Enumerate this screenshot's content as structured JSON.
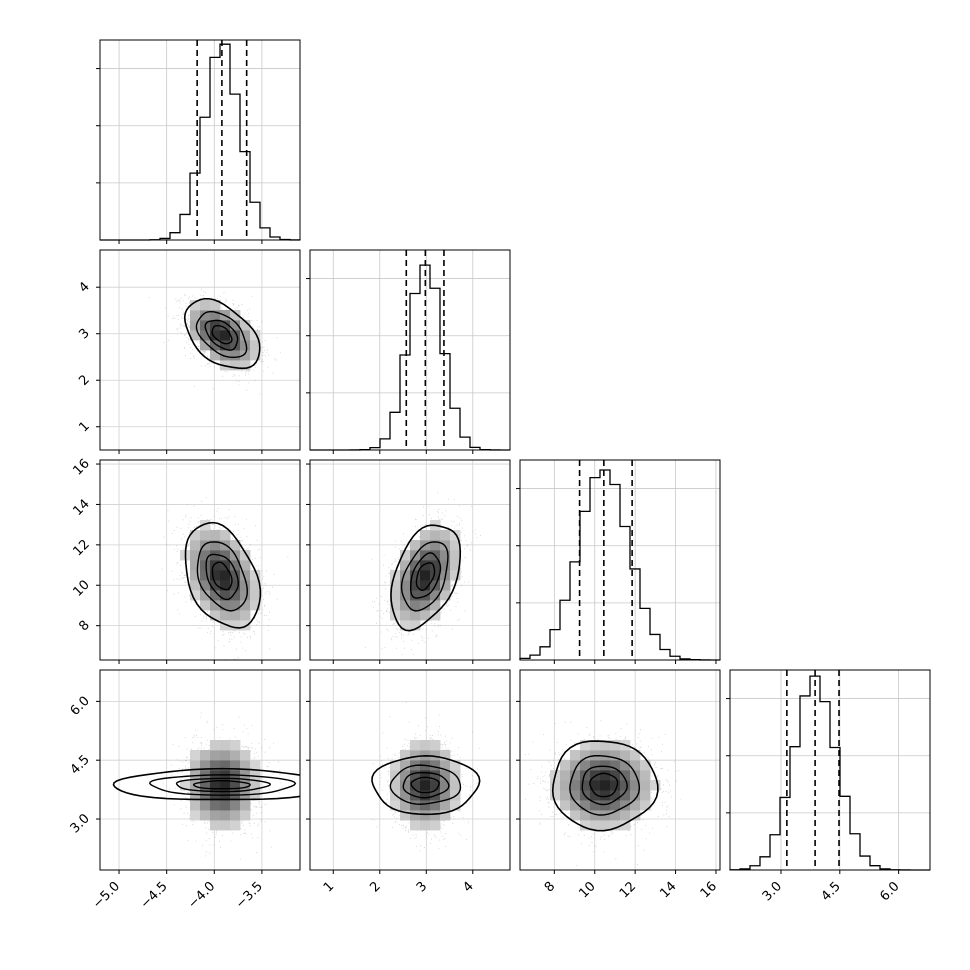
{
  "chart_data": {
    "type": "corner",
    "parameters": [
      {
        "index": 0,
        "range": [
          -5.2,
          -3.1
        ],
        "ticks": [
          -5.0,
          -4.5,
          -4.0,
          -3.5
        ],
        "tick_labels": [
          "−5.0",
          "−4.5",
          "−4.0",
          "−3.5"
        ],
        "mean": -3.92,
        "sd": 0.19,
        "quantiles": [
          -4.18,
          -3.92,
          -3.66
        ]
      },
      {
        "index": 1,
        "range": [
          0.5,
          4.8
        ],
        "ticks": [
          1,
          2,
          3,
          4
        ],
        "tick_labels": [
          "1",
          "2",
          "3",
          "4"
        ],
        "mean": 2.98,
        "sd": 0.36,
        "quantiles": [
          2.57,
          2.98,
          3.38
        ]
      },
      {
        "index": 2,
        "range": [
          6.3,
          16.2
        ],
        "ticks": [
          8,
          10,
          12,
          14,
          16
        ],
        "tick_labels": [
          "8",
          "10",
          "12",
          "14",
          "16"
        ],
        "mean": 10.45,
        "sd": 1.25,
        "quantiles": [
          9.25,
          10.45,
          11.85
        ]
      },
      {
        "index": 3,
        "range": [
          1.7,
          6.8
        ],
        "ticks": [
          3.0,
          4.5,
          6.0
        ],
        "tick_labels": [
          "3.0",
          "4.5",
          "6.0"
        ],
        "mean": 3.87,
        "sd": 0.55,
        "quantiles": [
          3.15,
          3.87,
          4.48
        ]
      }
    ],
    "correlations": [
      {
        "x": 0,
        "y": 1,
        "r": -0.45
      },
      {
        "x": 0,
        "y": 2,
        "r": -0.35
      },
      {
        "x": 1,
        "y": 2,
        "r": 0.4
      },
      {
        "x": 0,
        "y": 3,
        "r": 0.0
      },
      {
        "x": 1,
        "y": 3,
        "r": 0.0
      },
      {
        "x": 2,
        "y": 3,
        "r": 0.0
      }
    ],
    "contour_sigma_levels": [
      0.5,
      1.0,
      1.5,
      2.0
    ],
    "quantile_lines_style": "dashed",
    "grid": true
  }
}
